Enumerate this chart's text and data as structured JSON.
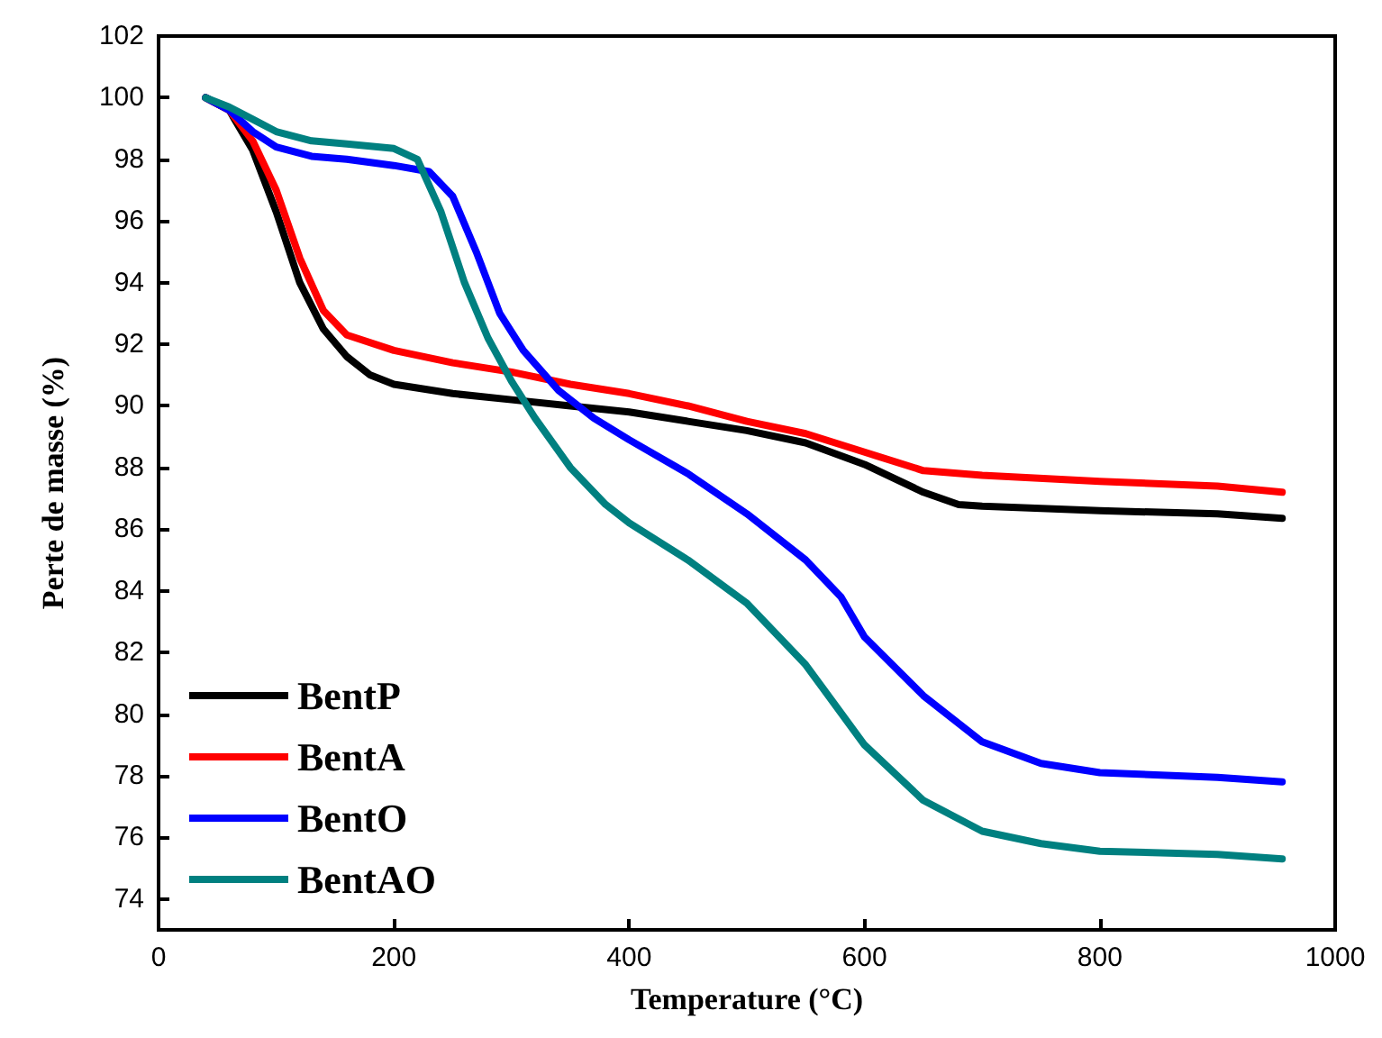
{
  "chart_data": {
    "type": "line",
    "xlabel": "Temperature (°C)",
    "ylabel": "Perte de masse (%)",
    "xlim": [
      0,
      1000
    ],
    "xticks": [
      0,
      200,
      400,
      600,
      800,
      1000
    ],
    "ylim": [
      73,
      102
    ],
    "yticks": [
      74,
      76,
      78,
      80,
      82,
      84,
      86,
      88,
      90,
      92,
      94,
      96,
      98,
      100,
      102
    ],
    "grid": false,
    "legend": "bottom left",
    "marker": "none",
    "line_style": "solid",
    "series": [
      {
        "name": "BentP",
        "color": "#000000",
        "x": [
          40,
          60,
          80,
          100,
          120,
          140,
          160,
          180,
          200,
          250,
          300,
          350,
          400,
          450,
          500,
          550,
          600,
          650,
          680,
          700,
          800,
          900,
          955
        ],
        "values": [
          100,
          99.6,
          98.3,
          96.3,
          94,
          92.5,
          91.6,
          91,
          90.7,
          90.4,
          90.2,
          90,
          89.8,
          89.5,
          89.2,
          88.8,
          88.1,
          87.2,
          86.8,
          86.75,
          86.6,
          86.5,
          86.35
        ]
      },
      {
        "name": "BentA",
        "color": "#ff0000",
        "x": [
          40,
          60,
          80,
          100,
          120,
          140,
          160,
          200,
          250,
          300,
          350,
          400,
          450,
          500,
          550,
          600,
          650,
          700,
          800,
          900,
          955
        ],
        "values": [
          100,
          99.6,
          98.6,
          97,
          94.8,
          93.1,
          92.3,
          91.8,
          91.4,
          91.1,
          90.7,
          90.4,
          90,
          89.5,
          89.1,
          88.5,
          87.9,
          87.75,
          87.55,
          87.4,
          87.2
        ]
      },
      {
        "name": "BentO",
        "color": "#0000ff",
        "x": [
          40,
          60,
          80,
          100,
          130,
          160,
          200,
          230,
          250,
          270,
          290,
          310,
          340,
          370,
          400,
          450,
          500,
          550,
          580,
          600,
          650,
          700,
          750,
          800,
          900,
          955
        ],
        "values": [
          100,
          99.6,
          98.9,
          98.4,
          98.1,
          98,
          97.8,
          97.6,
          96.8,
          95,
          93,
          91.8,
          90.5,
          89.6,
          88.9,
          87.8,
          86.5,
          85,
          83.8,
          82.5,
          80.6,
          79.1,
          78.4,
          78.1,
          77.95,
          77.8
        ]
      },
      {
        "name": "BentAO",
        "color": "#008080",
        "x": [
          40,
          60,
          80,
          100,
          130,
          160,
          200,
          220,
          240,
          260,
          280,
          300,
          320,
          350,
          380,
          400,
          450,
          500,
          550,
          600,
          650,
          700,
          750,
          800,
          900,
          955
        ],
        "values": [
          100,
          99.7,
          99.3,
          98.9,
          98.6,
          98.5,
          98.35,
          98,
          96.3,
          94,
          92.2,
          90.8,
          89.6,
          88,
          86.8,
          86.2,
          85,
          83.6,
          81.6,
          79,
          77.2,
          76.2,
          75.8,
          75.55,
          75.45,
          75.3
        ]
      }
    ]
  }
}
